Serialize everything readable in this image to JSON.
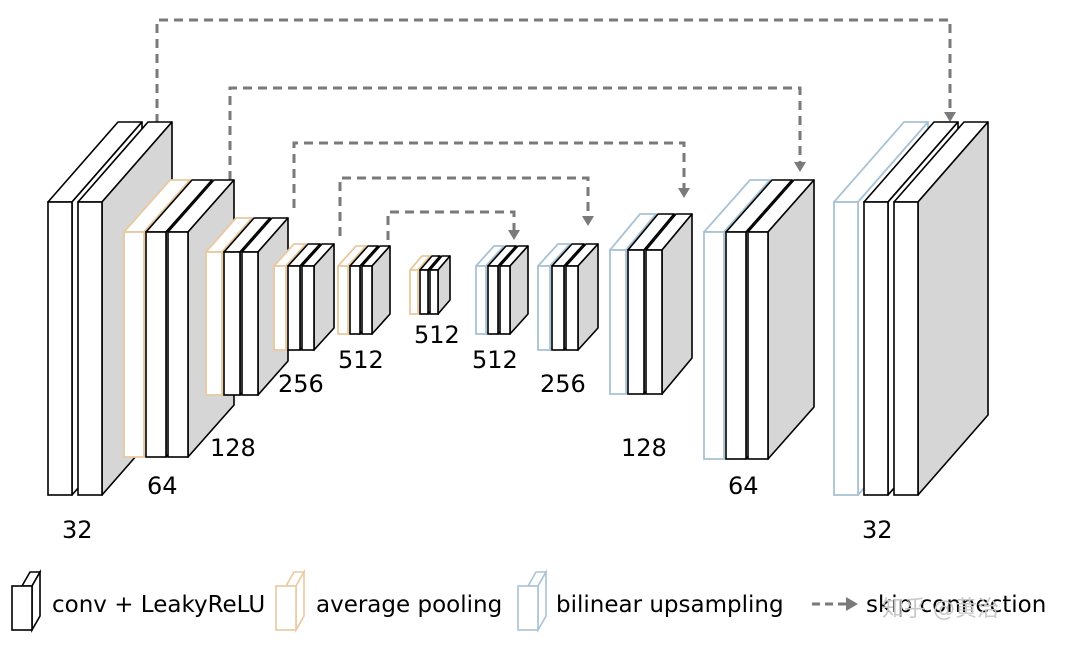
{
  "encoder_labels": [
    "32",
    "64",
    "128",
    "256",
    "512",
    "512"
  ],
  "bottleneck_label": "512",
  "decoder_labels": [
    "512",
    "256",
    "128",
    "64",
    "32"
  ],
  "legend": {
    "conv": "conv + LeakyReLU",
    "pool": "average pooling",
    "upsample": "bilinear upsampling",
    "skip": "skip connection"
  },
  "watermark": "知乎 @黄治",
  "colors": {
    "conv_stroke": "#000000",
    "pool_stroke": "#e8c9a0",
    "upsample_stroke": "#a9c3d6",
    "skip_line": "#7a7a7a",
    "block_fill": "#ffffff",
    "side_fill": "#d6d6d6"
  }
}
